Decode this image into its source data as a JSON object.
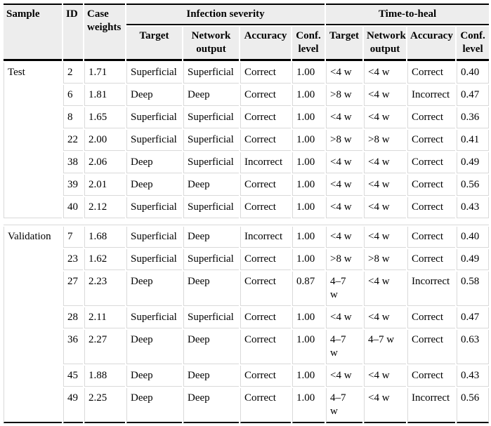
{
  "colors": {
    "header_background": "#ededed",
    "grid_line": "#d9d9d9",
    "rule_line": "#000000"
  },
  "header": {
    "sample": "Sample",
    "id": "ID",
    "case_weights": "Case weights",
    "groups": [
      {
        "label": "Infection severity",
        "sub": [
          "Target",
          "Network output",
          "Accuracy",
          "Conf. level"
        ]
      },
      {
        "label": "Time-to-heal",
        "sub": [
          "Target",
          "Network output",
          "Accuracy",
          "Conf. level"
        ]
      }
    ]
  },
  "sections": [
    {
      "sample": "Test",
      "rows": [
        {
          "id": "2",
          "case_weight": "1.71",
          "infection": {
            "target": "Superficial",
            "network_output": "Superficial",
            "accuracy": "Correct",
            "conf_level": "1.00"
          },
          "time": {
            "target": "<4 w",
            "network_output": "<4 w",
            "accuracy": "Correct",
            "conf_level": "0.40"
          }
        },
        {
          "id": "6",
          "case_weight": "1.81",
          "infection": {
            "target": "Deep",
            "network_output": "Deep",
            "accuracy": "Correct",
            "conf_level": "1.00"
          },
          "time": {
            "target": ">8 w",
            "network_output": "<4 w",
            "accuracy": "Incorrect",
            "conf_level": "0.47"
          }
        },
        {
          "id": "8",
          "case_weight": "1.65",
          "infection": {
            "target": "Superficial",
            "network_output": "Superficial",
            "accuracy": "Correct",
            "conf_level": "1.00"
          },
          "time": {
            "target": "<4 w",
            "network_output": "<4 w",
            "accuracy": "Correct",
            "conf_level": "0.36"
          }
        },
        {
          "id": "22",
          "case_weight": "2.00",
          "infection": {
            "target": "Superficial",
            "network_output": "Superficial",
            "accuracy": "Correct",
            "conf_level": "1.00"
          },
          "time": {
            "target": ">8 w",
            "network_output": ">8 w",
            "accuracy": "Correct",
            "conf_level": "0.41"
          }
        },
        {
          "id": "38",
          "case_weight": "2.06",
          "infection": {
            "target": "Deep",
            "network_output": "Superficial",
            "accuracy": "Incorrect",
            "conf_level": "1.00"
          },
          "time": {
            "target": "<4 w",
            "network_output": "<4 w",
            "accuracy": "Correct",
            "conf_level": "0.49"
          }
        },
        {
          "id": "39",
          "case_weight": "2.01",
          "infection": {
            "target": "Deep",
            "network_output": "Deep",
            "accuracy": "Correct",
            "conf_level": "1.00"
          },
          "time": {
            "target": "<4 w",
            "network_output": "<4 w",
            "accuracy": "Correct",
            "conf_level": "0.56"
          }
        },
        {
          "id": "40",
          "case_weight": "2.12",
          "infection": {
            "target": "Superficial",
            "network_output": "Superficial",
            "accuracy": "Correct",
            "conf_level": "1.00"
          },
          "time": {
            "target": "<4 w",
            "network_output": "<4 w",
            "accuracy": "Correct",
            "conf_level": "0.43"
          }
        }
      ]
    },
    {
      "sample": "Validation",
      "rows": [
        {
          "id": "7",
          "case_weight": "1.68",
          "infection": {
            "target": "Superficial",
            "network_output": "Deep",
            "accuracy": "Incorrect",
            "conf_level": "1.00"
          },
          "time": {
            "target": "<4 w",
            "network_output": "<4 w",
            "accuracy": "Correct",
            "conf_level": "0.40"
          }
        },
        {
          "id": "23",
          "case_weight": "1.62",
          "infection": {
            "target": "Superficial",
            "network_output": "Superficial",
            "accuracy": "Correct",
            "conf_level": "1.00"
          },
          "time": {
            "target": ">8 w",
            "network_output": ">8 w",
            "accuracy": "Correct",
            "conf_level": "0.49"
          }
        },
        {
          "id": "27",
          "case_weight": "2.23",
          "infection": {
            "target": "Deep",
            "network_output": "Deep",
            "accuracy": "Correct",
            "conf_level": "0.87"
          },
          "time": {
            "target": "4–7\nw",
            "network_output": "<4 w",
            "accuracy": "Incorrect",
            "conf_level": "0.58"
          }
        },
        {
          "id": "28",
          "case_weight": "2.11",
          "infection": {
            "target": "Superficial",
            "network_output": "Superficial",
            "accuracy": "Correct",
            "conf_level": "1.00"
          },
          "time": {
            "target": "<4 w",
            "network_output": "<4 w",
            "accuracy": "Correct",
            "conf_level": "0.47"
          }
        },
        {
          "id": "36",
          "case_weight": "2.27",
          "infection": {
            "target": "Deep",
            "network_output": "Deep",
            "accuracy": "Correct",
            "conf_level": "1.00"
          },
          "time": {
            "target": "4–7\nw",
            "network_output": "4–7 w",
            "accuracy": "Correct",
            "conf_level": "0.63"
          }
        },
        {
          "id": "45",
          "case_weight": "1.88",
          "infection": {
            "target": "Deep",
            "network_output": "Deep",
            "accuracy": "Correct",
            "conf_level": "1.00"
          },
          "time": {
            "target": "<4 w",
            "network_output": "<4 w",
            "accuracy": "Correct",
            "conf_level": "0.43"
          }
        },
        {
          "id": "49",
          "case_weight": "2.25",
          "infection": {
            "target": "Deep",
            "network_output": "Deep",
            "accuracy": "Correct",
            "conf_level": "1.00"
          },
          "time": {
            "target": "4–7\nw",
            "network_output": "<4 w",
            "accuracy": "Incorrect",
            "conf_level": "0.56"
          }
        }
      ]
    }
  ]
}
